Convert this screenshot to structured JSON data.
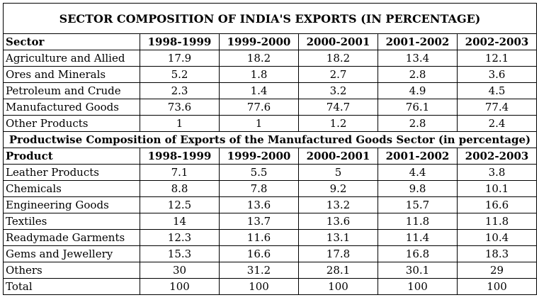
{
  "title": "SECTOR COMPOSITION OF INDIA'S EXPORTS (IN PERCENTAGE)",
  "sector_table": {
    "header": [
      "Sector",
      "1998-1999",
      "1999-2000",
      "2000-2001",
      "2001-2002",
      "2002-2003"
    ],
    "rows": [
      [
        "Agriculture and Allied",
        "17.9",
        "18.2",
        "18.2",
        "13.4",
        "12.1"
      ],
      [
        "Ores and Minerals",
        "5.2",
        "1.8",
        "2.7",
        "2.8",
        "3.6"
      ],
      [
        "Petroleum and Crude",
        "2.3",
        "1.4",
        "3.2",
        "4.9",
        "4.5"
      ],
      [
        "Manufactured Goods",
        "73.6",
        "77.6",
        "74.7",
        "76.1",
        "77.4"
      ],
      [
        "Other Products",
        "1",
        "1",
        "1.2",
        "2.8",
        "2.4"
      ]
    ]
  },
  "subtitle": "Productwise Composition of Exports of the Manufactured Goods Sector (in percentage)",
  "product_table": {
    "header": [
      "Product",
      "1998-1999",
      "1999-2000",
      "2000-2001",
      "2001-2002",
      "2002-2003"
    ],
    "rows": [
      [
        "Leather Products",
        "7.1",
        "5.5",
        "5",
        "4.4",
        "3.8"
      ],
      [
        "Chemicals",
        "8.8",
        "7.8",
        "9.2",
        "9.8",
        "10.1"
      ],
      [
        "Engineering Goods",
        "12.5",
        "13.6",
        "13.2",
        "15.7",
        "16.6"
      ],
      [
        "Textiles",
        "14",
        "13.7",
        "13.6",
        "11.8",
        "11.8"
      ],
      [
        "Readymade Garments",
        "12.3",
        "11.6",
        "13.1",
        "11.4",
        "10.4"
      ],
      [
        "Gems and Jewellery",
        "15.3",
        "16.6",
        "17.8",
        "16.8",
        "18.3"
      ],
      [
        "Others",
        "30",
        "31.2",
        "28.1",
        "30.1",
        "29"
      ],
      [
        "Total",
        "100",
        "100",
        "100",
        "100",
        "100"
      ]
    ]
  }
}
